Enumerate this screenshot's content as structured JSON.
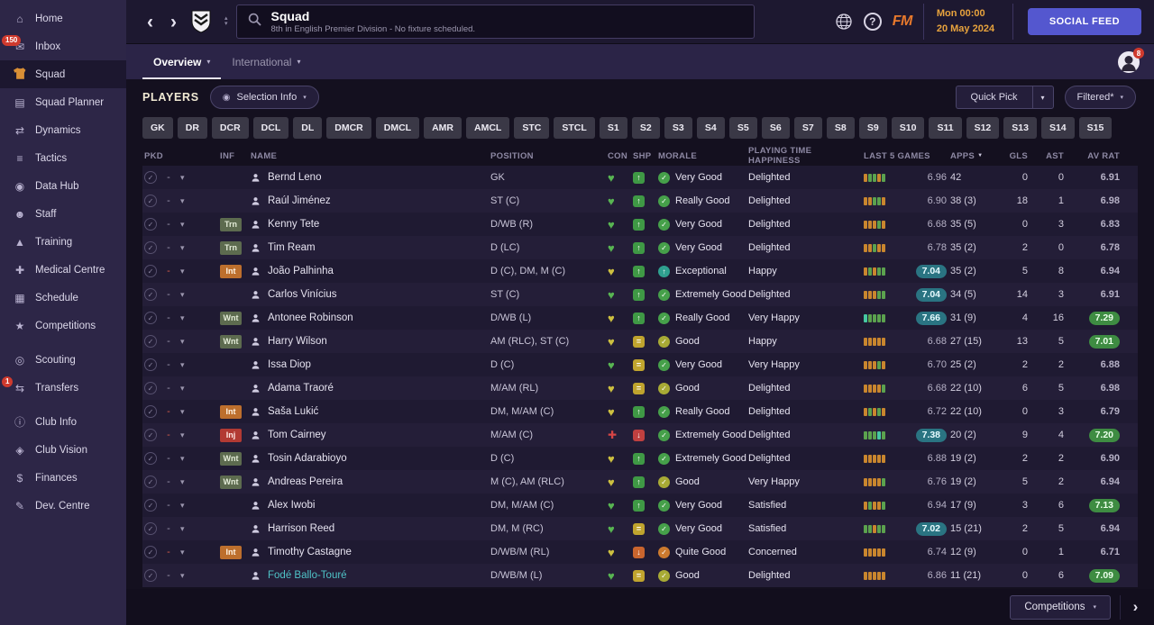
{
  "sidebar": {
    "items": [
      {
        "label": "Home",
        "icon": "home-icon"
      },
      {
        "label": "Inbox",
        "icon": "inbox-icon",
        "badge": "150"
      },
      {
        "label": "Squad",
        "icon": "squad-icon",
        "active": true
      },
      {
        "label": "Squad Planner",
        "icon": "squad-planner-icon"
      },
      {
        "label": "Dynamics",
        "icon": "dynamics-icon"
      },
      {
        "label": "Tactics",
        "icon": "tactics-icon"
      },
      {
        "label": "Data Hub",
        "icon": "data-hub-icon"
      },
      {
        "label": "Staff",
        "icon": "staff-icon"
      },
      {
        "label": "Training",
        "icon": "training-icon"
      },
      {
        "label": "Medical Centre",
        "icon": "medical-centre-icon"
      },
      {
        "label": "Schedule",
        "icon": "schedule-icon"
      },
      {
        "label": "Competitions",
        "icon": "competitions-icon"
      },
      {
        "label": "Scouting",
        "icon": "scouting-icon",
        "gap": true
      },
      {
        "label": "Transfers",
        "icon": "transfers-icon",
        "badge": "1"
      },
      {
        "label": "Club Info",
        "icon": "club-info-icon",
        "gap": true
      },
      {
        "label": "Club Vision",
        "icon": "club-vision-icon"
      },
      {
        "label": "Finances",
        "icon": "finances-icon"
      },
      {
        "label": "Dev. Centre",
        "icon": "dev-centre-icon"
      }
    ]
  },
  "topbar": {
    "title": "Squad",
    "subtitle": "8th in English Premier Division - No fixture scheduled.",
    "fm_logo": "FM",
    "date_line1": "Mon 00:00",
    "date_line2": "20 May 2024",
    "social_feed_label": "SOCIAL FEED",
    "avatar_badge": "8"
  },
  "tabs": [
    {
      "label": "Overview"
    },
    {
      "label": "International"
    }
  ],
  "toolbar": {
    "players_label": "PLAYERS",
    "selection_info_label": "Selection Info",
    "quick_pick_label": "Quick Pick",
    "filtered_label": "Filtered*"
  },
  "position_filters": [
    "GK",
    "DR",
    "DCR",
    "DCL",
    "DL",
    "DMCR",
    "DMCL",
    "AMR",
    "AMCL",
    "STC",
    "STCL",
    "S1",
    "S2",
    "S3",
    "S4",
    "S5",
    "S6",
    "S7",
    "S8",
    "S9",
    "S10",
    "S11",
    "S12",
    "S13",
    "S14",
    "S15"
  ],
  "table": {
    "columns": [
      "PKD",
      "INF",
      "NAME",
      "POSITION",
      "CON",
      "SHP",
      "MORALE",
      "PLAYING TIME HAPPINESS",
      "LAST 5 GAMES",
      "APPS",
      "GLS",
      "AST",
      "AV RAT"
    ],
    "rows": [
      {
        "pkd": "-",
        "pkd_red": false,
        "inf": "",
        "name": "Bernd Leno",
        "position": "GK",
        "con": "green",
        "shp": {
          "color": "green",
          "dir": "up"
        },
        "morale": {
          "text": "Very Good",
          "icon": "green"
        },
        "happiness": "Delighted",
        "last5": {
          "bars": [
            "o",
            "g",
            "g",
            "o",
            "g"
          ],
          "rating": "6.96",
          "highlight": false
        },
        "apps": "42",
        "gls": "0",
        "ast": "0",
        "av_rat": {
          "value": "6.91",
          "badge": false
        }
      },
      {
        "pkd": "-",
        "pkd_red": false,
        "inf": "",
        "name": "Raúl Jiménez",
        "position": "ST (C)",
        "con": "green",
        "shp": {
          "color": "green",
          "dir": "up"
        },
        "morale": {
          "text": "Really Good",
          "icon": "green"
        },
        "happiness": "Delighted",
        "last5": {
          "bars": [
            "o",
            "o",
            "g",
            "g",
            "o"
          ],
          "rating": "6.90",
          "highlight": false
        },
        "apps": "38 (3)",
        "gls": "18",
        "ast": "1",
        "av_rat": {
          "value": "6.98",
          "badge": false
        }
      },
      {
        "pkd": "-",
        "pkd_red": false,
        "inf": "Trn",
        "name": "Kenny Tete",
        "position": "D/WB (R)",
        "con": "green",
        "shp": {
          "color": "green",
          "dir": "up"
        },
        "morale": {
          "text": "Very Good",
          "icon": "green"
        },
        "happiness": "Delighted",
        "last5": {
          "bars": [
            "o",
            "o",
            "o",
            "g",
            "o"
          ],
          "rating": "6.68",
          "highlight": false
        },
        "apps": "35 (5)",
        "gls": "0",
        "ast": "3",
        "av_rat": {
          "value": "6.83",
          "badge": false
        }
      },
      {
        "pkd": "-",
        "pkd_red": false,
        "inf": "Trn",
        "name": "Tim Ream",
        "position": "D (LC)",
        "con": "green",
        "shp": {
          "color": "green",
          "dir": "up"
        },
        "morale": {
          "text": "Very Good",
          "icon": "green"
        },
        "happiness": "Delighted",
        "last5": {
          "bars": [
            "o",
            "o",
            "g",
            "o",
            "o"
          ],
          "rating": "6.78",
          "highlight": false
        },
        "apps": "35 (2)",
        "gls": "2",
        "ast": "0",
        "av_rat": {
          "value": "6.78",
          "badge": false
        }
      },
      {
        "pkd": "-",
        "pkd_red": true,
        "inf": "Int",
        "name": "João Palhinha",
        "position": "D (C), DM, M (C)",
        "con": "yellow",
        "shp": {
          "color": "green",
          "dir": "up"
        },
        "morale": {
          "text": "Exceptional",
          "icon": "teal"
        },
        "happiness": "Happy",
        "last5": {
          "bars": [
            "o",
            "g",
            "o",
            "g",
            "g"
          ],
          "rating": "7.04",
          "highlight": true
        },
        "apps": "35 (2)",
        "gls": "5",
        "ast": "8",
        "av_rat": {
          "value": "6.94",
          "badge": false
        }
      },
      {
        "pkd": "-",
        "pkd_red": false,
        "inf": "",
        "name": "Carlos Vinícius",
        "position": "ST (C)",
        "con": "green",
        "shp": {
          "color": "green",
          "dir": "up"
        },
        "morale": {
          "text": "Extremely Good",
          "icon": "green"
        },
        "happiness": "Delighted",
        "last5": {
          "bars": [
            "o",
            "o",
            "o",
            "g",
            "g"
          ],
          "rating": "7.04",
          "highlight": true
        },
        "apps": "34 (5)",
        "gls": "14",
        "ast": "3",
        "av_rat": {
          "value": "6.91",
          "badge": false
        }
      },
      {
        "pkd": "-",
        "pkd_red": false,
        "inf": "Wnt",
        "name": "Antonee Robinson",
        "position": "D/WB (L)",
        "con": "yellow",
        "shp": {
          "color": "green",
          "dir": "up"
        },
        "morale": {
          "text": "Really Good",
          "icon": "green"
        },
        "happiness": "Very Happy",
        "last5": {
          "bars": [
            "t",
            "g",
            "g",
            "g",
            "g"
          ],
          "rating": "7.66",
          "highlight": true
        },
        "apps": "31 (9)",
        "gls": "4",
        "ast": "16",
        "av_rat": {
          "value": "7.29",
          "badge": true
        }
      },
      {
        "pkd": "-",
        "pkd_red": false,
        "inf": "Wnt",
        "name": "Harry Wilson",
        "position": "AM (RLC), ST (C)",
        "con": "yellow",
        "shp": {
          "color": "yellow",
          "dir": "eq"
        },
        "morale": {
          "text": "Good",
          "icon": "olive"
        },
        "happiness": "Happy",
        "last5": {
          "bars": [
            "o",
            "o",
            "o",
            "o",
            "o"
          ],
          "rating": "6.68",
          "highlight": false
        },
        "apps": "27 (15)",
        "gls": "13",
        "ast": "5",
        "av_rat": {
          "value": "7.01",
          "badge": true
        }
      },
      {
        "pkd": "-",
        "pkd_red": false,
        "inf": "",
        "name": "Issa Diop",
        "position": "D (C)",
        "con": "green",
        "shp": {
          "color": "yellow",
          "dir": "eq"
        },
        "morale": {
          "text": "Very Good",
          "icon": "green"
        },
        "happiness": "Very Happy",
        "last5": {
          "bars": [
            "o",
            "o",
            "o",
            "g",
            "o"
          ],
          "rating": "6.70",
          "highlight": false
        },
        "apps": "25 (2)",
        "gls": "2",
        "ast": "2",
        "av_rat": {
          "value": "6.88",
          "badge": false
        }
      },
      {
        "pkd": "-",
        "pkd_red": false,
        "inf": "",
        "name": "Adama Traoré",
        "position": "M/AM (RL)",
        "con": "yellow",
        "shp": {
          "color": "yellow",
          "dir": "eq"
        },
        "morale": {
          "text": "Good",
          "icon": "olive"
        },
        "happiness": "Delighted",
        "last5": {
          "bars": [
            "o",
            "o",
            "o",
            "o",
            "g"
          ],
          "rating": "6.68",
          "highlight": false
        },
        "apps": "22 (10)",
        "gls": "6",
        "ast": "5",
        "av_rat": {
          "value": "6.98",
          "badge": false
        }
      },
      {
        "pkd": "-",
        "pkd_red": true,
        "inf": "Int",
        "name": "Saša Lukić",
        "position": "DM, M/AM (C)",
        "con": "yellow",
        "shp": {
          "color": "green",
          "dir": "up"
        },
        "morale": {
          "text": "Really Good",
          "icon": "green"
        },
        "happiness": "Delighted",
        "last5": {
          "bars": [
            "o",
            "g",
            "o",
            "g",
            "o"
          ],
          "rating": "6.72",
          "highlight": false
        },
        "apps": "22 (10)",
        "gls": "0",
        "ast": "3",
        "av_rat": {
          "value": "6.79",
          "badge": false
        }
      },
      {
        "pkd": "-",
        "pkd_red": true,
        "inf": "Inj",
        "name": "Tom Cairney",
        "position": "M/AM (C)",
        "con": "injury",
        "shp": {
          "color": "red",
          "dir": "down"
        },
        "morale": {
          "text": "Extremely Good",
          "icon": "green"
        },
        "happiness": "Delighted",
        "last5": {
          "bars": [
            "g",
            "g",
            "g",
            "t",
            "g"
          ],
          "rating": "7.38",
          "highlight": true
        },
        "apps": "20 (2)",
        "gls": "9",
        "ast": "4",
        "av_rat": {
          "value": "7.20",
          "badge": true
        }
      },
      {
        "pkd": "-",
        "pkd_red": false,
        "inf": "Wnt",
        "name": "Tosin Adarabioyo",
        "position": "D (C)",
        "con": "yellow",
        "shp": {
          "color": "green",
          "dir": "up"
        },
        "morale": {
          "text": "Extremely Good",
          "icon": "green"
        },
        "happiness": "Delighted",
        "last5": {
          "bars": [
            "o",
            "o",
            "o",
            "o",
            "o"
          ],
          "rating": "6.88",
          "highlight": false
        },
        "apps": "19 (2)",
        "gls": "2",
        "ast": "2",
        "av_rat": {
          "value": "6.90",
          "badge": false
        }
      },
      {
        "pkd": "-",
        "pkd_red": false,
        "inf": "Wnt",
        "name": "Andreas Pereira",
        "position": "M (C), AM (RLC)",
        "con": "yellow",
        "shp": {
          "color": "green",
          "dir": "up"
        },
        "morale": {
          "text": "Good",
          "icon": "olive"
        },
        "happiness": "Very Happy",
        "last5": {
          "bars": [
            "o",
            "o",
            "o",
            "o",
            "g"
          ],
          "rating": "6.76",
          "highlight": false
        },
        "apps": "19 (2)",
        "gls": "5",
        "ast": "2",
        "av_rat": {
          "value": "6.94",
          "badge": false
        }
      },
      {
        "pkd": "-",
        "pkd_red": false,
        "inf": "",
        "name": "Alex Iwobi",
        "position": "DM, M/AM (C)",
        "con": "green",
        "shp": {
          "color": "green",
          "dir": "up"
        },
        "morale": {
          "text": "Very Good",
          "icon": "green"
        },
        "happiness": "Satisfied",
        "last5": {
          "bars": [
            "o",
            "g",
            "o",
            "o",
            "g"
          ],
          "rating": "6.94",
          "highlight": false
        },
        "apps": "17 (9)",
        "gls": "3",
        "ast": "6",
        "av_rat": {
          "value": "7.13",
          "badge": true
        }
      },
      {
        "pkd": "-",
        "pkd_red": false,
        "inf": "",
        "name": "Harrison Reed",
        "position": "DM, M (RC)",
        "con": "green",
        "shp": {
          "color": "yellow",
          "dir": "eq"
        },
        "morale": {
          "text": "Very Good",
          "icon": "green"
        },
        "happiness": "Satisfied",
        "last5": {
          "bars": [
            "g",
            "g",
            "o",
            "g",
            "g"
          ],
          "rating": "7.02",
          "highlight": true
        },
        "apps": "15 (21)",
        "gls": "2",
        "ast": "5",
        "av_rat": {
          "value": "6.94",
          "badge": false
        }
      },
      {
        "pkd": "-",
        "pkd_red": true,
        "inf": "Int",
        "name": "Timothy Castagne",
        "position": "D/WB/M (RL)",
        "con": "yellow",
        "shp": {
          "color": "orange",
          "dir": "down"
        },
        "morale": {
          "text": "Quite Good",
          "icon": "orange"
        },
        "happiness": "Concerned",
        "last5": {
          "bars": [
            "o",
            "o",
            "o",
            "o",
            "o"
          ],
          "rating": "6.74",
          "highlight": false
        },
        "apps": "12 (9)",
        "gls": "0",
        "ast": "1",
        "av_rat": {
          "value": "6.71",
          "badge": false
        }
      },
      {
        "pkd": "-",
        "pkd_red": false,
        "inf": "",
        "name": "Fodé Ballo-Touré",
        "name_teal": true,
        "position": "D/WB/M (L)",
        "con": "green",
        "shp": {
          "color": "yellow",
          "dir": "eq"
        },
        "morale": {
          "text": "Good",
          "icon": "olive"
        },
        "happiness": "Delighted",
        "last5": {
          "bars": [
            "o",
            "o",
            "o",
            "o",
            "o"
          ],
          "rating": "6.86",
          "highlight": false
        },
        "apps": "11 (21)",
        "gls": "0",
        "ast": "6",
        "av_rat": {
          "value": "7.09",
          "badge": true
        }
      }
    ]
  },
  "footer": {
    "competitions_label": "Competitions"
  },
  "colors": {
    "accent_orange": "#e8a33d",
    "social_feed_purple": "#5457cf",
    "last5_highlight_teal": "#2a7482",
    "av_rat_green": "#3e8c42",
    "sidebar_purple": "#2d2647"
  }
}
